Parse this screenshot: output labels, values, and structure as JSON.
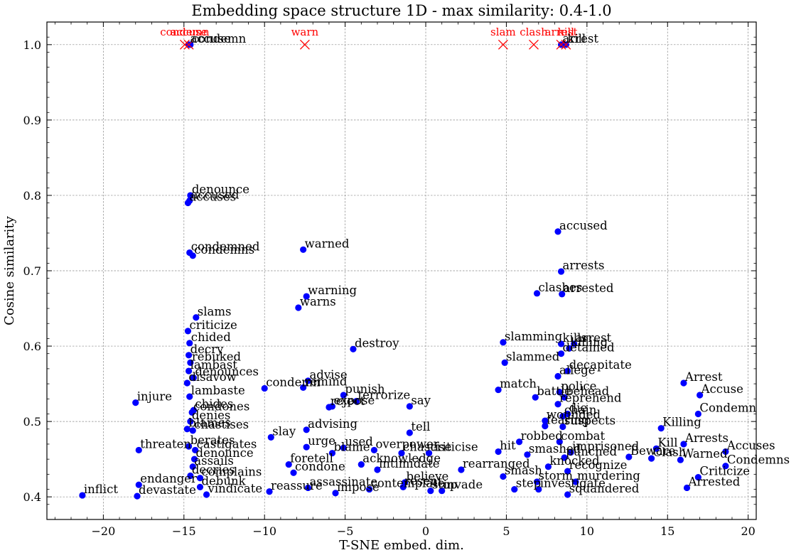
{
  "chart_data": {
    "type": "scatter",
    "title": "Embedding space structure 1D - max similarity: 0.4-1.0",
    "xlabel": "T-SNE embed. dim.",
    "ylabel": "Cosine similarity",
    "xlim": [
      -23.5,
      20.5
    ],
    "ylim": [
      0.37,
      1.03
    ],
    "xticks": [
      -20,
      -15,
      -10,
      -5,
      0,
      5,
      10,
      15,
      20
    ],
    "yticks": [
      0.4,
      0.5,
      0.6,
      0.7,
      0.8,
      0.9,
      1.0
    ],
    "grid": true,
    "colors": {
      "points": "#0000ff",
      "reference_markers": "#ff0000",
      "grid": "#888888"
    },
    "reference_words": [
      {
        "label": "condemn",
        "x": -14.95,
        "y": 1.0
      },
      {
        "label": "accuse",
        "x": -14.7,
        "y": 1.0
      },
      {
        "label": "warn",
        "x": -7.5,
        "y": 1.0
      },
      {
        "label": "slam",
        "x": 4.8,
        "y": 1.0
      },
      {
        "label": "clash",
        "x": 6.7,
        "y": 1.0
      },
      {
        "label": "arrest",
        "x": 8.4,
        "y": 1.0
      },
      {
        "label": "kill",
        "x": 8.7,
        "y": 1.0
      }
    ],
    "points": [
      {
        "label": "accuse",
        "x": -14.7,
        "y": 1.0
      },
      {
        "label": "condemn",
        "x": -14.6,
        "y": 1.0
      },
      {
        "label": "arrest",
        "x": 8.4,
        "y": 1.0
      },
      {
        "label": "kill",
        "x": 8.7,
        "y": 1.0
      },
      {
        "label": "denounce",
        "x": -14.6,
        "y": 0.8
      },
      {
        "label": "accused",
        "x": -14.65,
        "y": 0.793
      },
      {
        "label": "accuses",
        "x": -14.75,
        "y": 0.79
      },
      {
        "label": "condemned",
        "x": -14.65,
        "y": 0.724
      },
      {
        "label": "condemns",
        "x": -14.45,
        "y": 0.72
      },
      {
        "label": "slams",
        "x": -14.25,
        "y": 0.638
      },
      {
        "label": "criticize",
        "x": -14.75,
        "y": 0.62
      },
      {
        "label": "chided",
        "x": -14.65,
        "y": 0.604
      },
      {
        "label": "decry",
        "x": -14.7,
        "y": 0.588
      },
      {
        "label": "rebuked",
        "x": -14.6,
        "y": 0.578
      },
      {
        "label": "lambast",
        "x": -14.7,
        "y": 0.567
      },
      {
        "label": "denounces",
        "x": -14.4,
        "y": 0.558
      },
      {
        "label": "disavow",
        "x": -14.8,
        "y": 0.551
      },
      {
        "label": "lambaste",
        "x": -14.65,
        "y": 0.533
      },
      {
        "label": "chides",
        "x": -14.4,
        "y": 0.515
      },
      {
        "label": "condones",
        "x": -14.5,
        "y": 0.512
      },
      {
        "label": "denies",
        "x": -14.6,
        "y": 0.5
      },
      {
        "label": "blames",
        "x": -14.8,
        "y": 0.49
      },
      {
        "label": "chastises",
        "x": -14.45,
        "y": 0.488
      },
      {
        "label": "berates",
        "x": -14.7,
        "y": 0.467
      },
      {
        "label": "castigates",
        "x": -14.3,
        "y": 0.462
      },
      {
        "label": "denounce",
        "x": -14.35,
        "y": 0.45
      },
      {
        "label": "assails",
        "x": -14.45,
        "y": 0.44
      },
      {
        "label": "decries",
        "x": -14.6,
        "y": 0.428
      },
      {
        "label": "complains",
        "x": -14.0,
        "y": 0.425
      },
      {
        "label": "endanger",
        "x": -17.8,
        "y": 0.416
      },
      {
        "label": "debunk",
        "x": -14.0,
        "y": 0.413
      },
      {
        "label": "devastate",
        "x": -17.9,
        "y": 0.401
      },
      {
        "label": "vindicate",
        "x": -13.6,
        "y": 0.403
      },
      {
        "label": "inflict",
        "x": -21.3,
        "y": 0.402
      },
      {
        "label": "injure",
        "x": -18.0,
        "y": 0.525
      },
      {
        "label": "threaten",
        "x": -17.8,
        "y": 0.462
      },
      {
        "label": "warned",
        "x": -7.6,
        "y": 0.728
      },
      {
        "label": "warning",
        "x": -7.4,
        "y": 0.666
      },
      {
        "label": "warns",
        "x": -7.9,
        "y": 0.651
      },
      {
        "label": "advise",
        "x": -7.3,
        "y": 0.554
      },
      {
        "label": "condemn",
        "x": -10.0,
        "y": 0.544
      },
      {
        "label": "remind",
        "x": -7.6,
        "y": 0.545
      },
      {
        "label": "slay",
        "x": -9.6,
        "y": 0.479
      },
      {
        "label": "advising",
        "x": -7.4,
        "y": 0.489
      },
      {
        "label": "urge",
        "x": -7.4,
        "y": 0.466
      },
      {
        "label": "foretell",
        "x": -8.5,
        "y": 0.443
      },
      {
        "label": "condone",
        "x": -8.2,
        "y": 0.432
      },
      {
        "label": "reassure",
        "x": -9.7,
        "y": 0.407
      },
      {
        "label": "assassinate",
        "x": -7.3,
        "y": 0.412
      },
      {
        "label": "destroy",
        "x": -4.5,
        "y": 0.596
      },
      {
        "label": "punish",
        "x": -5.1,
        "y": 0.535
      },
      {
        "label": "terrorize",
        "x": -4.3,
        "y": 0.527
      },
      {
        "label": "expose",
        "x": -5.8,
        "y": 0.52
      },
      {
        "label": "reject",
        "x": -6.0,
        "y": 0.519
      },
      {
        "label": "say",
        "x": -1.0,
        "y": 0.52
      },
      {
        "label": "tell",
        "x": -1.0,
        "y": 0.485
      },
      {
        "label": "used",
        "x": -5.1,
        "y": 0.465
      },
      {
        "label": "overpower",
        "x": -3.2,
        "y": 0.462
      },
      {
        "label": "blame",
        "x": -5.8,
        "y": 0.458
      },
      {
        "label": "chastise",
        "x": -1.5,
        "y": 0.458
      },
      {
        "label": "criticise",
        "x": 0.2,
        "y": 0.458
      },
      {
        "label": "acknowledge",
        "x": -4.0,
        "y": 0.443
      },
      {
        "label": "intimidate",
        "x": -3.0,
        "y": 0.436
      },
      {
        "label": "believe",
        "x": -1.3,
        "y": 0.419
      },
      {
        "label": "resent",
        "x": -1.4,
        "y": 0.413
      },
      {
        "label": "contemplate",
        "x": -3.5,
        "y": 0.41
      },
      {
        "label": "impose",
        "x": -5.6,
        "y": 0.405
      },
      {
        "label": "stop",
        "x": 0.3,
        "y": 0.408
      },
      {
        "label": "invade",
        "x": 1.0,
        "y": 0.408
      },
      {
        "label": "accused",
        "x": 8.2,
        "y": 0.752
      },
      {
        "label": "arrests",
        "x": 8.4,
        "y": 0.699
      },
      {
        "label": "clashes",
        "x": 6.9,
        "y": 0.67
      },
      {
        "label": "arrested",
        "x": 8.45,
        "y": 0.669
      },
      {
        "label": "slamming",
        "x": 4.8,
        "y": 0.605
      },
      {
        "label": "kills",
        "x": 8.4,
        "y": 0.603
      },
      {
        "label": "arrest",
        "x": 9.2,
        "y": 0.603
      },
      {
        "label": "killing",
        "x": 8.9,
        "y": 0.597
      },
      {
        "label": "detained",
        "x": 8.4,
        "y": 0.59
      },
      {
        "label": "slammed",
        "x": 4.9,
        "y": 0.578
      },
      {
        "label": "decapitate",
        "x": 8.8,
        "y": 0.567
      },
      {
        "label": "allege",
        "x": 8.2,
        "y": 0.56
      },
      {
        "label": "match",
        "x": 4.5,
        "y": 0.542
      },
      {
        "label": "police",
        "x": 8.3,
        "y": 0.539
      },
      {
        "label": "battle",
        "x": 6.8,
        "y": 0.532
      },
      {
        "label": "behead",
        "x": 8.6,
        "y": 0.532
      },
      {
        "label": "reprehend",
        "x": 8.2,
        "y": 0.523
      },
      {
        "label": "die",
        "x": 8.8,
        "y": 0.51
      },
      {
        "label": "chain",
        "x": 8.5,
        "y": 0.507
      },
      {
        "label": "wounded",
        "x": 7.4,
        "y": 0.501
      },
      {
        "label": "fearing",
        "x": 7.4,
        "y": 0.494
      },
      {
        "label": "suspects",
        "x": 8.5,
        "y": 0.493
      },
      {
        "label": "robbed",
        "x": 5.8,
        "y": 0.473
      },
      {
        "label": "combat",
        "x": 8.3,
        "y": 0.473
      },
      {
        "label": "hit",
        "x": 4.5,
        "y": 0.46
      },
      {
        "label": "imprisoned",
        "x": 9.0,
        "y": 0.459
      },
      {
        "label": "smashed",
        "x": 6.3,
        "y": 0.456
      },
      {
        "label": "punched",
        "x": 8.6,
        "y": 0.452
      },
      {
        "label": "rearranged",
        "x": 2.2,
        "y": 0.436
      },
      {
        "label": "knocked",
        "x": 7.6,
        "y": 0.44
      },
      {
        "label": "smash",
        "x": 4.8,
        "y": 0.427
      },
      {
        "label": "recognize",
        "x": 8.8,
        "y": 0.434
      },
      {
        "label": "storm",
        "x": 6.9,
        "y": 0.42
      },
      {
        "label": "murdering",
        "x": 9.3,
        "y": 0.42
      },
      {
        "label": "step",
        "x": 5.5,
        "y": 0.41
      },
      {
        "label": "investigate",
        "x": 7.0,
        "y": 0.41
      },
      {
        "label": "squandered",
        "x": 8.8,
        "y": 0.403
      },
      {
        "label": "Arrest",
        "x": 16.0,
        "y": 0.551
      },
      {
        "label": "Accuse",
        "x": 17.0,
        "y": 0.535
      },
      {
        "label": "Condemn",
        "x": 16.9,
        "y": 0.51
      },
      {
        "label": "Killing",
        "x": 14.6,
        "y": 0.491
      },
      {
        "label": "Arrests",
        "x": 16.0,
        "y": 0.47
      },
      {
        "label": "Accuses",
        "x": 18.6,
        "y": 0.46
      },
      {
        "label": "Kill",
        "x": 14.3,
        "y": 0.464
      },
      {
        "label": "Beware",
        "x": 12.6,
        "y": 0.453
      },
      {
        "label": "Clash",
        "x": 14.0,
        "y": 0.451
      },
      {
        "label": "Warned",
        "x": 15.8,
        "y": 0.449
      },
      {
        "label": "Condemns",
        "x": 18.6,
        "y": 0.441
      },
      {
        "label": "Criticize",
        "x": 16.9,
        "y": 0.426
      },
      {
        "label": "Arrested",
        "x": 16.2,
        "y": 0.412
      }
    ]
  }
}
